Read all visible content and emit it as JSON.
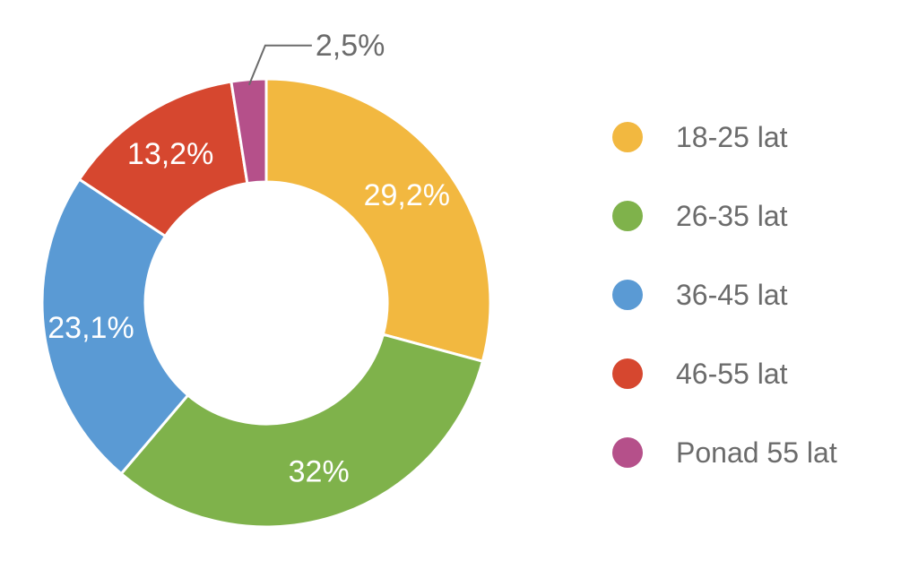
{
  "chart_data": {
    "type": "pie",
    "donut": true,
    "categories": [
      "18-25 lat",
      "26-35 lat",
      "36-45 lat",
      "46-55 lat",
      "Ponad 55 lat"
    ],
    "values": [
      29.2,
      32,
      23.1,
      13.2,
      2.5
    ],
    "value_labels": [
      "29,2%",
      "32%",
      "23,1%",
      "13,2%",
      "2,5%"
    ],
    "colors": [
      "#F2B840",
      "#7FB24B",
      "#5A9AD4",
      "#D6472F",
      "#B5508A"
    ],
    "legend_position": "right",
    "title": ""
  }
}
